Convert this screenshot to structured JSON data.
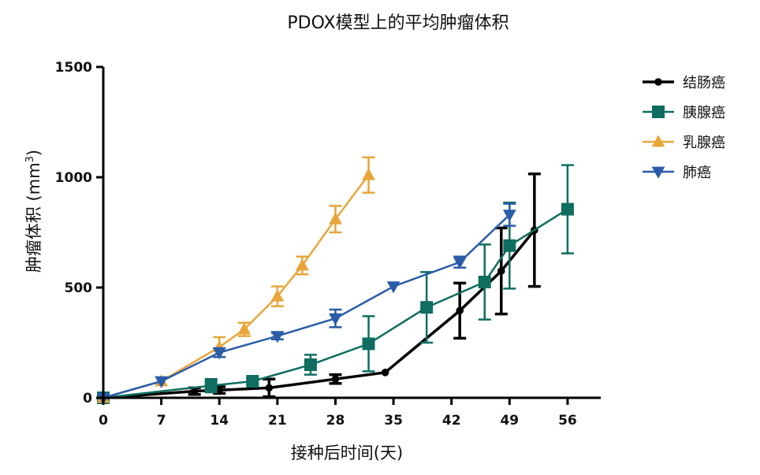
{
  "chart_data": {
    "type": "line",
    "title": "PDOX模型上的平均肿瘤体积",
    "xlabel": "接种后时间(天)",
    "ylabel": "肿瘤体积 (mm",
    "ylabel_sup": "3",
    "ylabel_end": ")",
    "xlim": [
      0,
      60
    ],
    "ylim": [
      0,
      1500
    ],
    "xticks": [
      0,
      7,
      14,
      21,
      28,
      35,
      42,
      49,
      56
    ],
    "yticks": [
      0,
      500,
      1000,
      1500
    ],
    "legend_position": "top-right",
    "series": [
      {
        "name": "结肠癌",
        "color": "#000000",
        "marker": "circle",
        "x": [
          0,
          11,
          14,
          20,
          28,
          34,
          43,
          48,
          52
        ],
        "y": [
          0,
          30,
          35,
          45,
          85,
          115,
          395,
          575,
          760
        ],
        "err": [
          0,
          15,
          15,
          40,
          20,
          0,
          125,
          195,
          255
        ]
      },
      {
        "name": "胰腺癌",
        "color": "#0f6e60",
        "marker": "square",
        "x": [
          0,
          13,
          18,
          25,
          32,
          39,
          46,
          49,
          56
        ],
        "y": [
          0,
          55,
          75,
          150,
          245,
          410,
          525,
          690,
          855
        ],
        "err": [
          0,
          30,
          15,
          45,
          125,
          160,
          170,
          195,
          200
        ]
      },
      {
        "name": "乳腺癌",
        "color": "#e8a63a",
        "marker": "triangle-up",
        "x": [
          0,
          7,
          14,
          17,
          21,
          24,
          28,
          32
        ],
        "y": [
          0,
          75,
          230,
          310,
          460,
          600,
          810,
          1010
        ],
        "err": [
          0,
          0,
          45,
          30,
          45,
          40,
          60,
          80
        ]
      },
      {
        "name": "肺癌",
        "color": "#2a5ca8",
        "marker": "triangle-down",
        "x": [
          0,
          7,
          14,
          21,
          28,
          35,
          43,
          49
        ],
        "y": [
          0,
          75,
          205,
          280,
          360,
          505,
          615,
          830
        ],
        "err": [
          0,
          0,
          20,
          15,
          40,
          0,
          25,
          50
        ]
      }
    ]
  }
}
